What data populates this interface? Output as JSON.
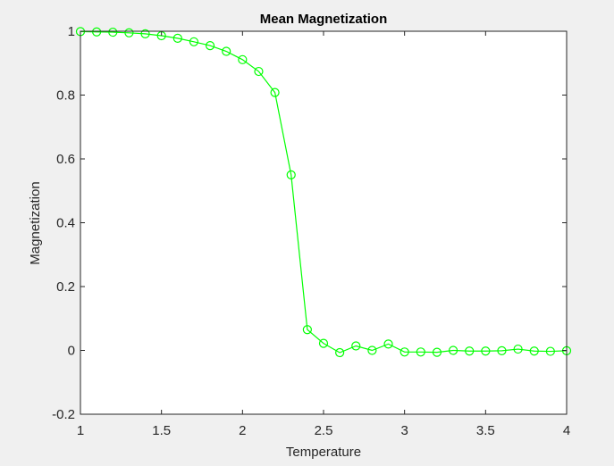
{
  "chart_data": {
    "type": "line",
    "title": "Mean Magnetization",
    "xlabel": "Temperature",
    "ylabel": "Magnetization",
    "xlim": [
      1,
      4
    ],
    "ylim": [
      -0.2,
      1
    ],
    "xticks": [
      1,
      1.5,
      2,
      2.5,
      3,
      3.5,
      4
    ],
    "xtick_labels": [
      "1",
      "1.5",
      "2",
      "2.5",
      "3",
      "3.5",
      "4"
    ],
    "yticks": [
      -0.2,
      0,
      0.2,
      0.4,
      0.6,
      0.8,
      1
    ],
    "ytick_labels": [
      "-0.2",
      "0",
      "0.2",
      "0.4",
      "0.6",
      "0.8",
      "1"
    ],
    "grid": false,
    "marker": "circle",
    "series": [
      {
        "color": "#00ff00",
        "x": [
          1.0,
          1.1,
          1.2,
          1.3,
          1.4,
          1.5,
          1.6,
          1.7,
          1.8,
          1.9,
          2.0,
          2.1,
          2.2,
          2.3,
          2.4,
          2.5,
          2.6,
          2.7,
          2.8,
          2.9,
          3.0,
          3.1,
          3.2,
          3.3,
          3.4,
          3.5,
          3.6,
          3.7,
          3.8,
          3.9,
          4.0
        ],
        "y": [
          0.999,
          0.998,
          0.997,
          0.995,
          0.992,
          0.986,
          0.978,
          0.967,
          0.955,
          0.937,
          0.911,
          0.874,
          0.808,
          0.55,
          0.065,
          0.022,
          -0.007,
          0.014,
          0.0,
          0.02,
          -0.005,
          -0.005,
          -0.006,
          0.0,
          -0.002,
          -0.002,
          -0.001,
          0.004,
          -0.002,
          -0.003,
          -0.001
        ]
      }
    ]
  }
}
